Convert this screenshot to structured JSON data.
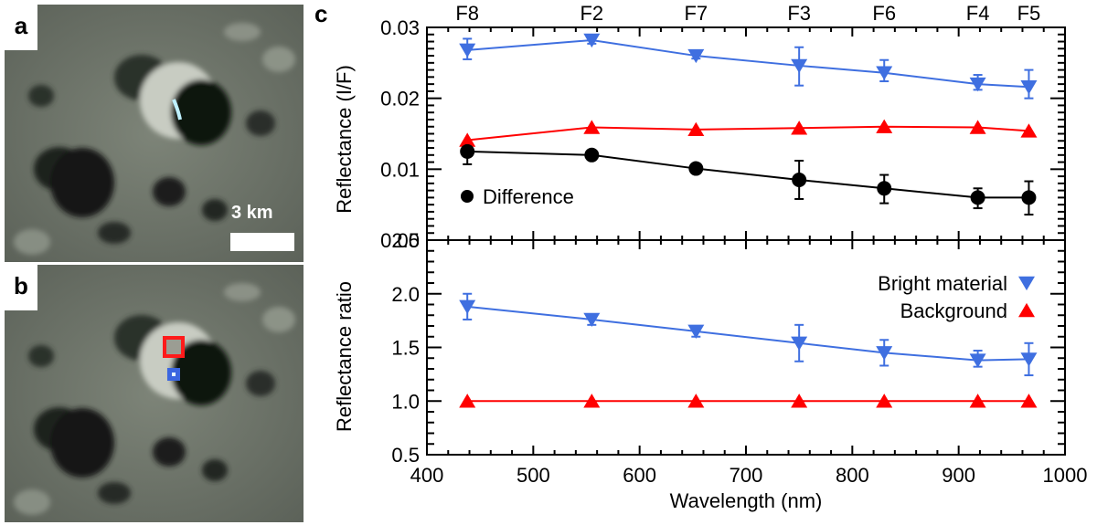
{
  "panels": {
    "a": {
      "label": "a",
      "scale_bar_text": "3 km"
    },
    "b": {
      "label": "b",
      "markers": [
        {
          "name": "background-region",
          "color": "#ff1a1a"
        },
        {
          "name": "bright-material-region",
          "color": "#3b66e0"
        }
      ]
    },
    "c": {
      "label": "c"
    }
  },
  "colors": {
    "bright": "#3f6fe0",
    "background": "#ff0000",
    "difference": "#000000"
  },
  "chart_data": [
    {
      "type": "line",
      "panel": "top",
      "title": "",
      "xlabel": "",
      "ylabel": "Reflectance (I/F)",
      "xlim": [
        400,
        1000
      ],
      "ylim": [
        0.0,
        0.03
      ],
      "yticks": [
        "0.00",
        "0.01",
        "0.02",
        "0.03"
      ],
      "top_filter_labels": [
        {
          "label": "F8",
          "x": 438
        },
        {
          "label": "F2",
          "x": 555
        },
        {
          "label": "F7",
          "x": 653
        },
        {
          "label": "F3",
          "x": 750
        },
        {
          "label": "F6",
          "x": 830
        },
        {
          "label": "F4",
          "x": 918
        },
        {
          "label": "F5",
          "x": 966
        }
      ],
      "x": [
        438,
        555,
        653,
        750,
        830,
        918,
        966
      ],
      "series": [
        {
          "name": "Bright material",
          "marker": "triangle-down",
          "color": "#3f6fe0",
          "values": [
            0.0268,
            0.0282,
            0.026,
            0.0246,
            0.0236,
            0.022,
            0.0216
          ],
          "err_low": [
            0.0255,
            0.0277,
            0.0256,
            0.0218,
            0.0224,
            0.0212,
            0.02
          ],
          "err_high": [
            0.0284,
            0.0286,
            0.0263,
            0.0272,
            0.0254,
            0.0233,
            0.024
          ]
        },
        {
          "name": "Background",
          "marker": "triangle-up",
          "color": "#ff0000",
          "values": [
            0.0141,
            0.0159,
            0.0156,
            0.0158,
            0.016,
            0.0159,
            0.0154
          ],
          "err_low": null,
          "err_high": null
        },
        {
          "name": "Difference",
          "marker": "circle",
          "color": "#000000",
          "values": [
            0.0125,
            0.012,
            0.0101,
            0.0085,
            0.0073,
            0.006,
            0.006
          ],
          "err_low": [
            0.0107,
            0.0114,
            0.0096,
            0.0058,
            0.0052,
            0.0045,
            0.0036
          ],
          "err_high": [
            0.0128,
            0.0124,
            0.0106,
            0.0112,
            0.0092,
            0.0073,
            0.0083
          ]
        }
      ],
      "legend": [
        {
          "label": "Difference",
          "marker": "circle",
          "placement": "lower-left"
        }
      ]
    },
    {
      "type": "line",
      "panel": "bottom",
      "title": "",
      "xlabel": "Wavelength (nm)",
      "ylabel": "Reflectance ratio",
      "xlim": [
        400,
        1000
      ],
      "ylim": [
        0.5,
        2.5
      ],
      "xticks": [
        "400",
        "500",
        "600",
        "700",
        "800",
        "900",
        "1000"
      ],
      "yticks": [
        "0.5",
        "1.0",
        "1.5",
        "2.0",
        "2.5"
      ],
      "x": [
        438,
        555,
        653,
        750,
        830,
        918,
        966
      ],
      "series": [
        {
          "name": "Bright material",
          "marker": "triangle-down",
          "color": "#3f6fe0",
          "values": [
            1.88,
            1.76,
            1.65,
            1.54,
            1.45,
            1.38,
            1.39
          ],
          "err_low": [
            1.76,
            1.71,
            1.6,
            1.37,
            1.33,
            1.32,
            1.24
          ],
          "err_high": [
            2.0,
            1.8,
            1.69,
            1.71,
            1.57,
            1.47,
            1.54
          ]
        },
        {
          "name": "Background",
          "marker": "triangle-up",
          "color": "#ff0000",
          "values": [
            1.0,
            1.0,
            1.0,
            1.0,
            1.0,
            1.0,
            1.0
          ],
          "err_low": null,
          "err_high": null
        }
      ],
      "legend": [
        {
          "label": "Bright material",
          "marker": "triangle-down",
          "color": "#3f6fe0",
          "placement": "top-right"
        },
        {
          "label": "Background",
          "marker": "triangle-up",
          "color": "#ff0000",
          "placement": "top-right"
        }
      ]
    }
  ]
}
